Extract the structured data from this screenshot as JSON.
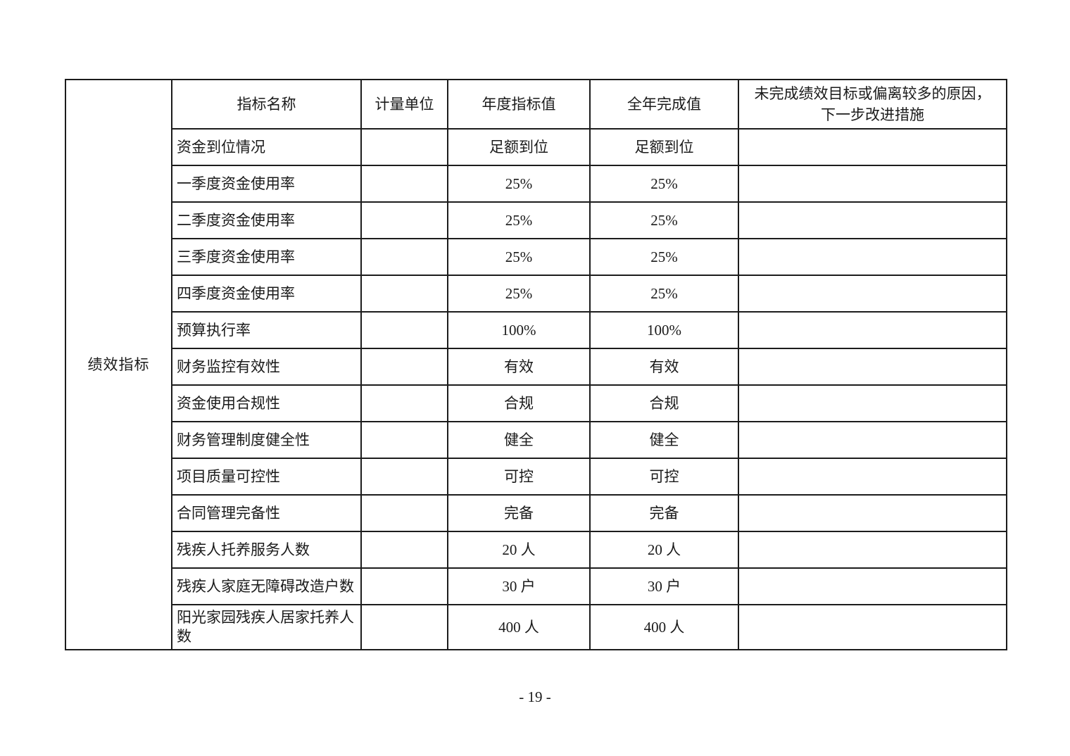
{
  "page": {
    "number_label": "- 19 -"
  },
  "colors": {
    "border": "#1c1c1c",
    "text": "#1a1a1a",
    "background": "#ffffff"
  },
  "table": {
    "row_group_label": "绩效指标",
    "headers": [
      "指标名称",
      "计量单位",
      "年度指标值",
      "全年完成值",
      "未完成绩效目标或偏离较多的原因，\n下一步改进措施"
    ],
    "rows": [
      {
        "name": "资金到位情况",
        "unit": "",
        "target": "足额到位",
        "actual": "足额到位",
        "reason": ""
      },
      {
        "name": "一季度资金使用率",
        "unit": "",
        "target": "25%",
        "actual": "25%",
        "reason": ""
      },
      {
        "name": "二季度资金使用率",
        "unit": "",
        "target": "25%",
        "actual": "25%",
        "reason": ""
      },
      {
        "name": "三季度资金使用率",
        "unit": "",
        "target": "25%",
        "actual": "25%",
        "reason": ""
      },
      {
        "name": "四季度资金使用率",
        "unit": "",
        "target": "25%",
        "actual": "25%",
        "reason": ""
      },
      {
        "name": "预算执行率",
        "unit": "",
        "target": "100%",
        "actual": "100%",
        "reason": ""
      },
      {
        "name": "财务监控有效性",
        "unit": "",
        "target": "有效",
        "actual": "有效",
        "reason": ""
      },
      {
        "name": "资金使用合规性",
        "unit": "",
        "target": "合规",
        "actual": "合规",
        "reason": ""
      },
      {
        "name": "财务管理制度健全性",
        "unit": "",
        "target": "健全",
        "actual": "健全",
        "reason": ""
      },
      {
        "name": "项目质量可控性",
        "unit": "",
        "target": "可控",
        "actual": "可控",
        "reason": ""
      },
      {
        "name": "合同管理完备性",
        "unit": "",
        "target": "完备",
        "actual": "完备",
        "reason": ""
      },
      {
        "name": "残疾人托养服务人数",
        "unit": "",
        "target": "20 人",
        "actual": "20 人",
        "reason": ""
      },
      {
        "name": "残疾人家庭无障碍改造户数",
        "unit": "",
        "target": "30 户",
        "actual": "30 户",
        "reason": ""
      },
      {
        "name": "阳光家园残疾人居家托养人数",
        "unit": "",
        "target": "400 人",
        "actual": "400 人",
        "reason": ""
      }
    ]
  }
}
